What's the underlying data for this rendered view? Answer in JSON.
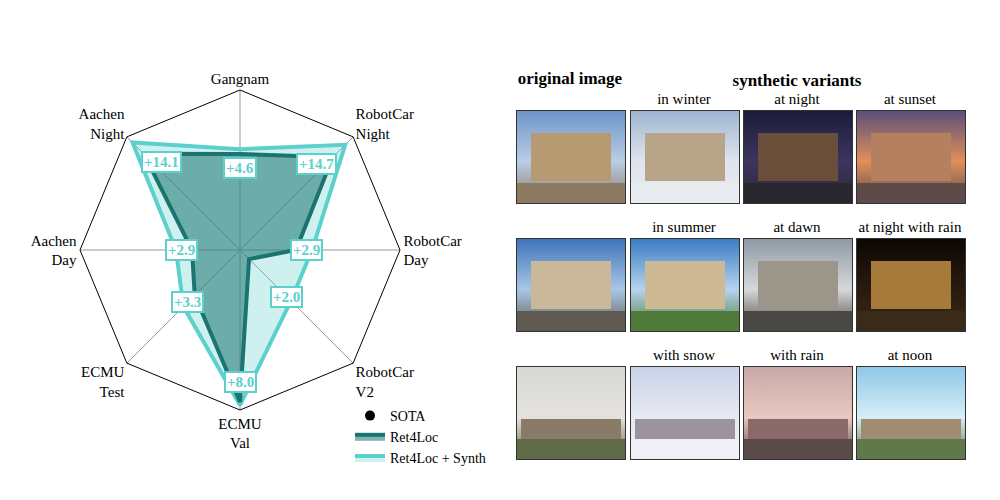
{
  "chart_data": {
    "type": "radar",
    "categories": [
      "Gangnam",
      "RobotCar Night",
      "RobotCar Day",
      "RobotCar V2",
      "ECMU Val",
      "ECMU Test",
      "Aachen Day",
      "Aachen Night"
    ],
    "series": [
      {
        "name": "SOTA",
        "color": "#000000",
        "marker": "circle",
        "values": [
          0,
          0,
          0,
          0,
          0,
          0,
          0,
          0
        ]
      },
      {
        "name": "Ret4Loc",
        "color": "#1b7470",
        "values": [
          0.6,
          0.82,
          0.35,
          0.08,
          0.95,
          0.4,
          0.3,
          0.85
        ]
      },
      {
        "name": "Ret4Loc + Synth",
        "color": "#5cd0cc",
        "values": [
          0.63,
          0.93,
          0.45,
          0.45,
          0.97,
          0.5,
          0.4,
          0.95
        ]
      }
    ],
    "annotations": [
      "+4.6",
      "+14.7",
      "+2.9",
      "+2.0",
      "+8.0",
      "+3.3",
      "+2.9",
      "+14.1"
    ],
    "ylim": [
      0,
      1
    ],
    "yticks": [
      1
    ],
    "tick_labels": false,
    "grid": true,
    "legend": "lower right"
  },
  "figure": {
    "header": {
      "original": "original image",
      "synthetic": "synthetic variants"
    },
    "rows": [
      {
        "captions": [
          "in winter",
          "at night",
          "at sunset"
        ]
      },
      {
        "captions": [
          "in summer",
          "at dawn",
          "at night with rain"
        ]
      },
      {
        "captions": [
          "with snow",
          "with rain",
          "at noon"
        ]
      }
    ]
  }
}
